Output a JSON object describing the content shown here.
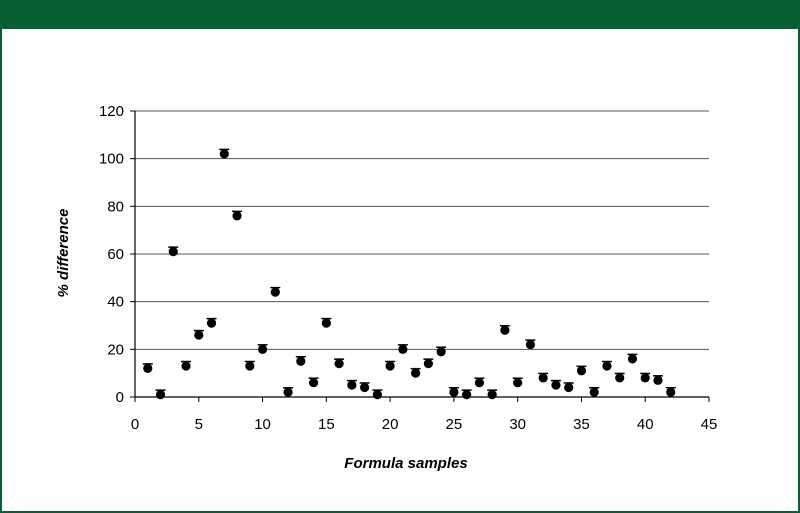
{
  "colors": {
    "frame": "#066034",
    "band": "#066034",
    "marker": "#000000",
    "grid": "#555555"
  },
  "chart_data": {
    "type": "scatter",
    "title": "",
    "xlabel": "Formula samples",
    "ylabel": "% difference",
    "xlim": [
      0,
      45
    ],
    "ylim": [
      0,
      120
    ],
    "xticks": [
      0,
      5,
      10,
      15,
      20,
      25,
      30,
      35,
      40,
      45
    ],
    "yticks": [
      0,
      20,
      40,
      60,
      80,
      100,
      120
    ],
    "grid": "horizontal",
    "legend": "none",
    "error_bars": true,
    "series": [
      {
        "x": [
          1,
          2,
          3,
          4,
          5,
          6,
          7,
          8,
          9,
          10,
          11,
          12,
          13,
          14,
          15,
          16,
          17,
          18,
          19,
          20,
          21,
          22,
          23,
          24,
          25,
          26,
          27,
          28,
          29,
          30,
          31,
          32,
          33,
          34,
          35,
          36,
          37,
          38,
          39,
          40,
          41,
          42
        ],
        "y": [
          12,
          1,
          61,
          13,
          26,
          31,
          102,
          76,
          13,
          20,
          44,
          2,
          15,
          6,
          31,
          14,
          5,
          4,
          1,
          13,
          20,
          10,
          14,
          19,
          2,
          1,
          6,
          1,
          28,
          6,
          22,
          8,
          5,
          4,
          11,
          2,
          13,
          8,
          16,
          8,
          7,
          2
        ]
      }
    ]
  }
}
